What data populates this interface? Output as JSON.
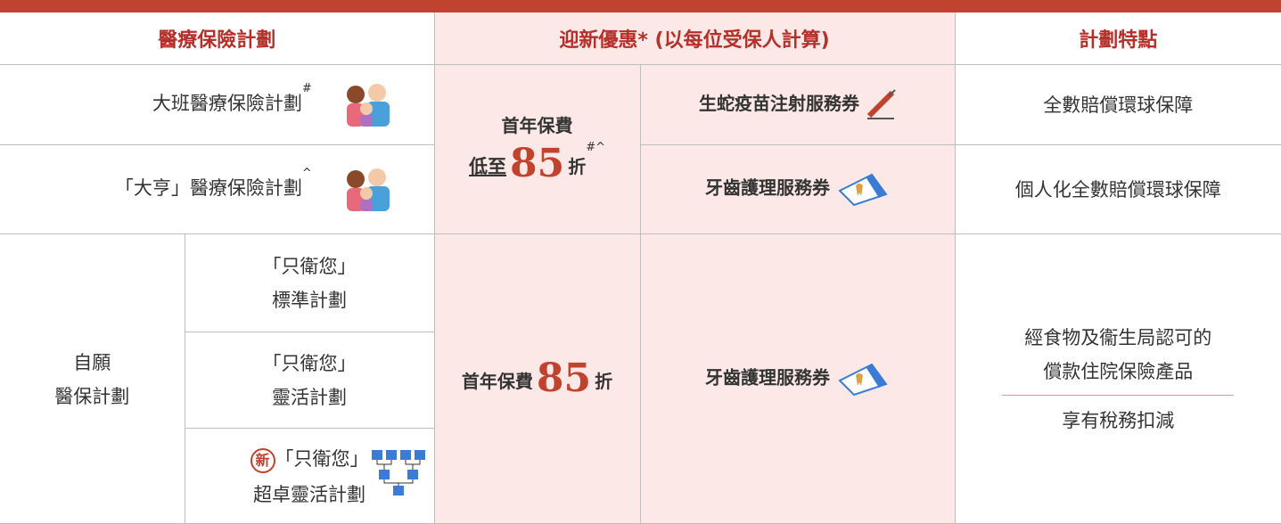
{
  "header": {
    "columns": [
      "醫療保險計劃",
      "迎新優惠* (以每位受保人計算)",
      "計劃特點"
    ]
  },
  "rows": [
    {
      "plan": "大班醫療保險計劃",
      "plan_mark": "#",
      "voucher": "生蛇疫苗注射服務券",
      "feature": "全數賠償環球保障"
    },
    {
      "plan": "「大亨」醫療保險計劃",
      "plan_mark": "^",
      "voucher": "牙齒護理服務券",
      "feature": "個人化全數賠償環球保障"
    }
  ],
  "offers": [
    {
      "line1": "首年保費",
      "prefix": "低至",
      "discount": 85,
      "suffix": "折",
      "mark": "#^"
    },
    {
      "prefix": "首年保費",
      "discount": 85,
      "suffix": "折"
    }
  ],
  "vhis": {
    "label_lines": [
      "自願",
      "醫保計劃"
    ],
    "plans": [
      {
        "lines": [
          "「只衛您」",
          "標準計劃"
        ]
      },
      {
        "lines": [
          "「只衛您」",
          "靈活計劃"
        ]
      },
      {
        "badge": "新",
        "lines": [
          "「只衛您」",
          "超卓靈活計劃"
        ]
      }
    ],
    "voucher": "牙齒護理服務券",
    "features": [
      "經食物及衞生局認可的",
      "償款住院保險產品"
    ],
    "tax": "享有稅務扣減"
  }
}
